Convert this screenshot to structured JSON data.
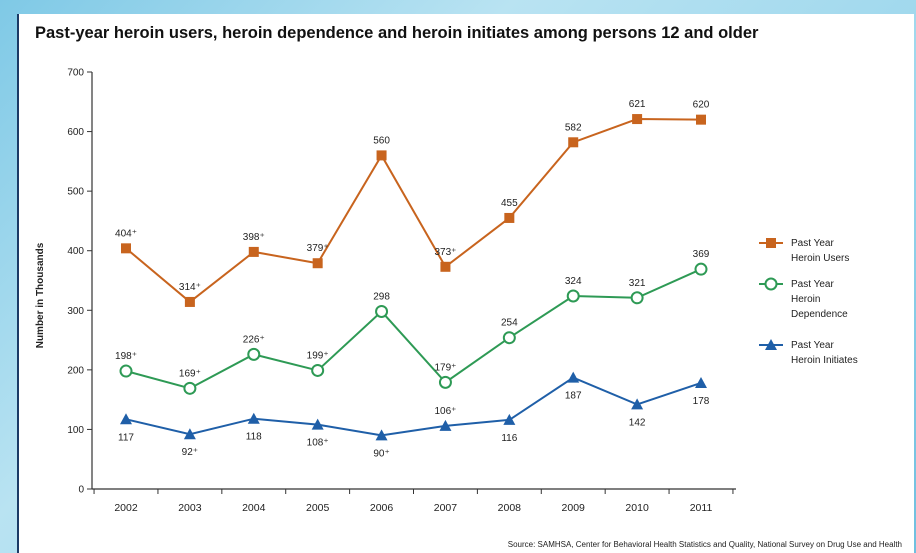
{
  "chart_data": {
    "type": "line",
    "title": "Past-year heroin users, heroin dependence and heroin initiates among persons 12 and older",
    "ylabel": "Number in Thousands",
    "xlabel": "",
    "ylim": [
      0,
      700
    ],
    "yticks": [
      "0",
      "100",
      "200",
      "300",
      "400",
      "500",
      "600",
      "700"
    ],
    "categories": [
      "2002",
      "2003",
      "2004",
      "2005",
      "2006",
      "2007",
      "2008",
      "2009",
      "2010",
      "2011"
    ],
    "legend_position": "right",
    "grid": false,
    "series": [
      {
        "name": "Past Year Heroin Users",
        "legend_lines": [
          "Past Year",
          "Heroin Users"
        ],
        "color": "#c8641e",
        "marker": "square",
        "values": [
          404,
          314,
          398,
          379,
          560,
          373,
          455,
          582,
          621,
          620
        ],
        "labels": [
          "404⁺",
          "314⁺",
          "398⁺",
          "379⁺",
          "560",
          "373⁺",
          "455",
          "582",
          "621",
          "620"
        ],
        "label_pos": [
          "above",
          "above",
          "above",
          "above",
          "above",
          "above",
          "above",
          "above",
          "above",
          "above"
        ]
      },
      {
        "name": "Past Year Heroin Dependence",
        "legend_lines": [
          "Past Year",
          "Heroin",
          "Dependence"
        ],
        "color": "#2e9a55",
        "marker": "circle",
        "values": [
          198,
          169,
          226,
          199,
          298,
          179,
          254,
          324,
          321,
          369
        ],
        "labels": [
          "198⁺",
          "169⁺",
          "226⁺",
          "199⁺",
          "298",
          "179⁺",
          "254",
          "324",
          "321",
          "369"
        ],
        "label_pos": [
          "above",
          "above",
          "above",
          "above",
          "above",
          "above",
          "above",
          "above",
          "above",
          "above"
        ]
      },
      {
        "name": "Past Year Heroin Initiates",
        "legend_lines": [
          "Past Year",
          "Heroin Initiates"
        ],
        "color": "#1f5fa8",
        "marker": "triangle",
        "values": [
          117,
          92,
          118,
          108,
          90,
          106,
          116,
          187,
          142,
          178
        ],
        "labels": [
          "117",
          "92⁺",
          "118",
          "108⁺",
          "90⁺",
          "106⁺",
          "116",
          "187",
          "142",
          "178"
        ],
        "label_pos": [
          "below",
          "below",
          "below",
          "below",
          "below",
          "above",
          "below",
          "below",
          "below",
          "below"
        ]
      }
    ]
  },
  "source_text": "Source: SAMHSA, Center for Behavioral Health Statistics and Quality, National Survey on Drug Use and Health"
}
